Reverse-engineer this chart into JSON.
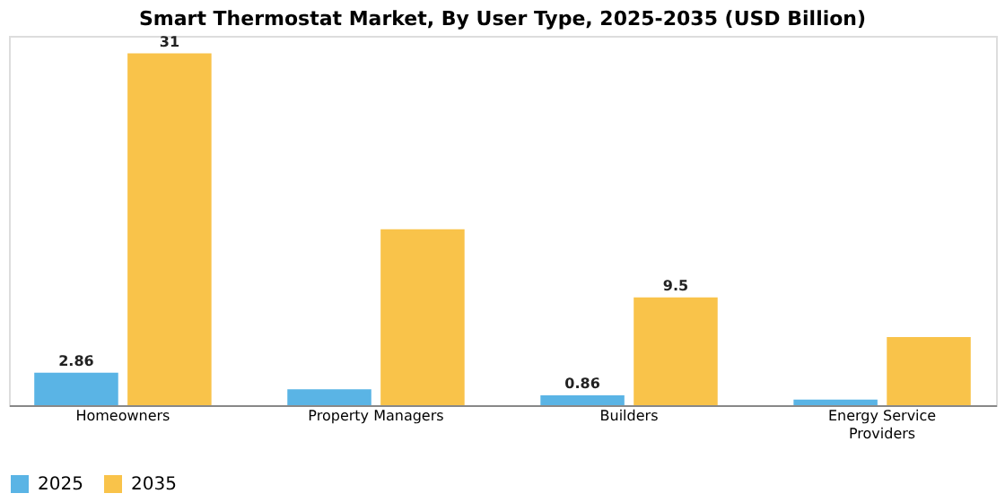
{
  "chart_data": {
    "type": "bar",
    "title": "Smart Thermostat Market, By User Type, 2025-2035 (USD Billion)",
    "categories": [
      "Homeowners",
      "Property Managers",
      "Builders",
      "Energy Service Providers"
    ],
    "series": [
      {
        "name": "2025",
        "color": "#5ab4e5",
        "values": [
          2.86,
          1.4,
          0.86,
          0.5
        ],
        "value_labels": [
          "2.86",
          null,
          "0.86",
          null
        ]
      },
      {
        "name": "2035",
        "color": "#f9c34a",
        "values": [
          31,
          15.5,
          9.5,
          6.0
        ],
        "value_labels": [
          "31",
          null,
          "9.5",
          null
        ]
      }
    ],
    "legend": "bottom",
    "grid": false
  }
}
